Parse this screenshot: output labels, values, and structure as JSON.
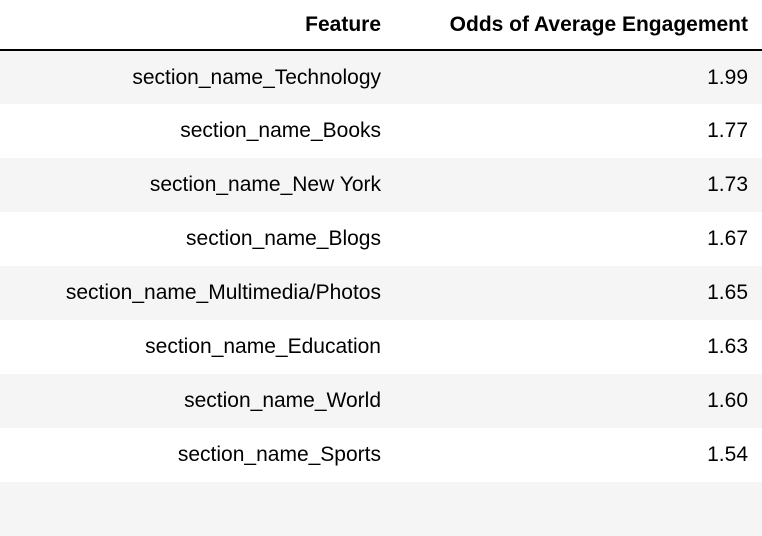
{
  "chart_data": {
    "type": "table",
    "columns": [
      "Feature",
      "Odds of Average Engagement"
    ],
    "rows": [
      {
        "feature": "section_name_Technology",
        "odds": "1.99"
      },
      {
        "feature": "section_name_Books",
        "odds": "1.77"
      },
      {
        "feature": "section_name_New York",
        "odds": "1.73"
      },
      {
        "feature": "section_name_Blogs",
        "odds": "1.67"
      },
      {
        "feature": "section_name_Multimedia/Photos",
        "odds": "1.65"
      },
      {
        "feature": "section_name_Education",
        "odds": "1.63"
      },
      {
        "feature": "section_name_World",
        "odds": "1.60"
      },
      {
        "feature": "section_name_Sports",
        "odds": "1.54"
      },
      {
        "feature": "",
        "odds": ""
      }
    ]
  }
}
